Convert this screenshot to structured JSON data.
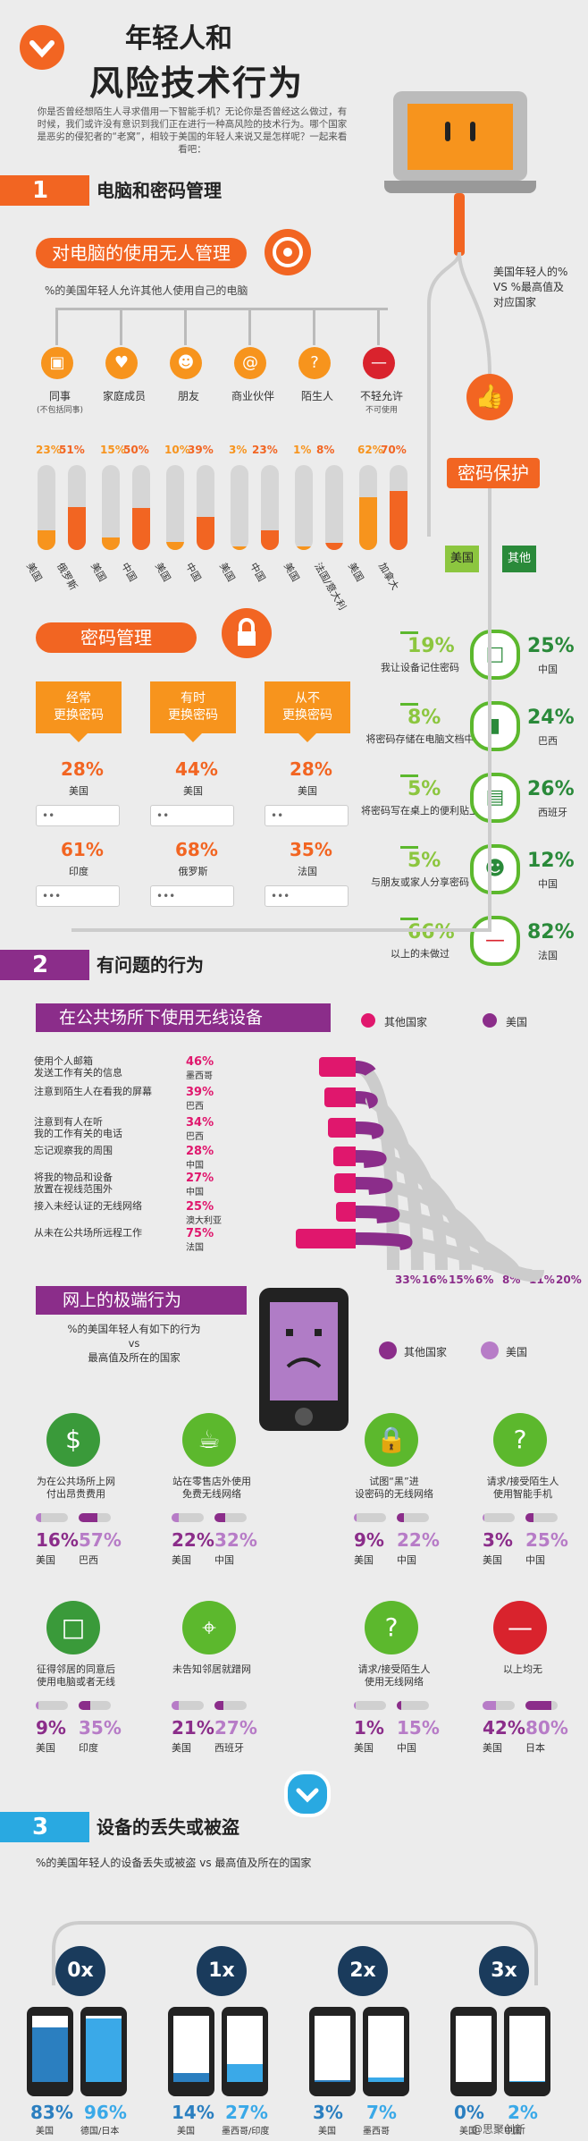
{
  "header": {
    "title_line1": "年轻人和",
    "title_line2": "风险技术行为",
    "intro": "你是否曾经想陌生人寻求借用一下智能手机？无论你是否曾经这么做过，有时候，我们或许没有意识到我们正在进行一种高风险的技术行为。哪个国家是恶劣的侵犯者的“老窝”，相较于美国的年轻人来说又是怎样呢？一起来看看吧："
  },
  "sec1": {
    "num": "1",
    "title": "电脑和密码管理"
  },
  "unattended": {
    "title": "对电脑的使用无人管理",
    "subtitle": "%的美国年轻人允许其他人使用自己的电脑",
    "side_note": "美国年轻人的% VS %最高值及对应国家",
    "categories": [
      {
        "label": "同事",
        "sub": "(不包括同事)",
        "v1": "23%",
        "v2": "51%",
        "c1": "美国",
        "c2": "俄罗斯",
        "f1": 0.23,
        "f2": 0.51
      },
      {
        "label": "家庭成员",
        "sub": "",
        "v1": "15%",
        "v2": "50%",
        "c1": "美国",
        "c2": "中国",
        "f1": 0.15,
        "f2": 0.5
      },
      {
        "label": "朋友",
        "sub": "",
        "v1": "10%",
        "v2": "39%",
        "c1": "美国",
        "c2": "中国",
        "f1": 0.1,
        "f2": 0.39
      },
      {
        "label": "商业伙伴",
        "sub": "",
        "v1": "3%",
        "v2": "23%",
        "c1": "美国",
        "c2": "中国",
        "f1": 0.03,
        "f2": 0.23
      },
      {
        "label": "陌生人",
        "sub": "",
        "v1": "1%",
        "v2": "8%",
        "c1": "美国",
        "c2": "法国/意大利",
        "f1": 0.01,
        "f2": 0.08
      },
      {
        "label": "不轻允许",
        "sub": "不可使用",
        "v1": "62%",
        "v2": "70%",
        "c1": "美国",
        "c2": "加拿大",
        "f1": 0.62,
        "f2": 0.7
      }
    ]
  },
  "pwd_protect": {
    "title": "密码保护",
    "legend_us": "美国",
    "legend_other": "其他",
    "rows": [
      {
        "label": "我让设备记住密码",
        "us": "19%",
        "other": "25%",
        "country": "中国",
        "icon": "laptop-icon"
      },
      {
        "label": "将密码存储在电脑文档中",
        "us": "8%",
        "other": "24%",
        "country": "巴西",
        "icon": "folder-icon"
      },
      {
        "label": "将密码写在桌上的便利贴上",
        "us": "5%",
        "other": "26%",
        "country": "西班牙",
        "icon": "sticky-note-icon"
      },
      {
        "label": "与朋友或家人分享密码",
        "us": "5%",
        "other": "12%",
        "country": "中国",
        "icon": "people-icon"
      },
      {
        "label": "以上的未做过",
        "us": "66%",
        "other": "82%",
        "country": "法国",
        "icon": "no-entry-icon"
      }
    ]
  },
  "pwd_mgmt": {
    "title": "密码管理",
    "cols": [
      {
        "label": "经常\n更换密码",
        "v1": "28%",
        "c1": "美国",
        "v2": "61%",
        "c2": "印度"
      },
      {
        "label": "有时\n更换密码",
        "v1": "44%",
        "c1": "美国",
        "v2": "68%",
        "c2": "俄罗斯"
      },
      {
        "label": "从不\n更换密码",
        "v1": "28%",
        "c1": "美国",
        "v2": "35%",
        "c2": "法国"
      }
    ]
  },
  "sec2": {
    "num": "2",
    "title": "有问题的行为"
  },
  "public_wifi": {
    "title": "在公共场所下使用无线设备",
    "legend_other": "其他国家",
    "legend_us": "美国",
    "rows": [
      {
        "label": "使用个人邮箱\n发送工作有关的信息",
        "v": "46%",
        "c": "墨西哥",
        "f": 0.46
      },
      {
        "label": "注意到陌生人在看我的屏幕",
        "v": "39%",
        "c": "巴西",
        "f": 0.39
      },
      {
        "label": "注意到有人在听\n我的工作有关的电话",
        "v": "34%",
        "c": "巴西",
        "f": 0.34
      },
      {
        "label": "忘记观察我的周围",
        "v": "28%",
        "c": "中国",
        "f": 0.28
      },
      {
        "label": "将我的物品和设备\n放置在视线范围外",
        "v": "27%",
        "c": "中国",
        "f": 0.27
      },
      {
        "label": "接入未经认证的无线网络",
        "v": "25%",
        "c": "澳大利亚",
        "f": 0.25
      },
      {
        "label": "从未在公共场所远程工作",
        "v": "75%",
        "c": "法国",
        "f": 0.75
      }
    ],
    "us_values": [
      "33%",
      "16%",
      "15%",
      "6%",
      "8%",
      "11%",
      "20%"
    ]
  },
  "extreme": {
    "title": "网上的极端行为",
    "subtitle": "%的美国年轻人有如下的行为\nvs\n最高值及所在的国家",
    "legend_other": "其他国家",
    "legend_us": "美国",
    "items": [
      {
        "label": "为在公共场所上网\n付出昂贵费用",
        "us": "16%",
        "other": "57%",
        "country": "巴西",
        "icon": "money-icon",
        "fu": 0.16,
        "fo": 0.57
      },
      {
        "label": "站在零售店外使用\n免费无线网络",
        "us": "22%",
        "other": "32%",
        "country": "中国",
        "icon": "coffee-wifi-icon",
        "fu": 0.22,
        "fo": 0.32
      },
      {
        "label": "试图“黑”进\n设密码的无线网络",
        "us": "9%",
        "other": "22%",
        "country": "中国",
        "icon": "lock-icon",
        "fu": 0.09,
        "fo": 0.22
      },
      {
        "label": "请求/接受陌生人\n使用智能手机",
        "us": "3%",
        "other": "25%",
        "country": "中国",
        "icon": "phone-question-icon",
        "fu": 0.03,
        "fo": 0.25
      },
      {
        "label": "征得邻居的同意后\n使用电脑或者无线",
        "us": "9%",
        "other": "35%",
        "country": "印度",
        "icon": "laptop-icon",
        "fu": 0.09,
        "fo": 0.35
      },
      {
        "label": "未告知邻居就蹭网",
        "us": "21%",
        "other": "27%",
        "country": "西班牙",
        "icon": "router-icon",
        "fu": 0.21,
        "fo": 0.27
      },
      {
        "label": "请求/接受陌生人\n使用无线网络",
        "us": "1%",
        "other": "15%",
        "country": "中国",
        "icon": "wifi-question-icon",
        "fu": 0.01,
        "fo": 0.15
      },
      {
        "label": "以上均无",
        "us": "42%",
        "other": "80%",
        "country": "日本",
        "icon": "no-entry-icon",
        "fu": 0.42,
        "fo": 0.8
      }
    ]
  },
  "sec3": {
    "num": "3",
    "title": "设备的丢失或被盗",
    "subtitle": "%的美国年轻人的设备丢失或被盗 vs 最高值及所在的国家",
    "groups": [
      {
        "label": "0x",
        "us": "83%",
        "other": "96%",
        "c1": "美国",
        "c2": "德国/日本",
        "fu": 0.83,
        "fo": 0.96
      },
      {
        "label": "1x",
        "us": "14%",
        "other": "27%",
        "c1": "美国",
        "c2": "墨西哥/印度",
        "fu": 0.14,
        "fo": 0.27
      },
      {
        "label": "2x",
        "us": "3%",
        "other": "7%",
        "c1": "美国",
        "c2": "墨西哥",
        "fu": 0.03,
        "fo": 0.07
      },
      {
        "label": "3x",
        "us": "0%",
        "other": "2%",
        "c1": "美国",
        "c2": "中国",
        "fu": 0.0,
        "fo": 0.02
      }
    ]
  },
  "watermark": "@思聚创新",
  "chart_data": [
    {
      "type": "bar",
      "title": "对电脑的使用无人管理",
      "categories": [
        "同事",
        "家庭成员",
        "朋友",
        "商业伙伴",
        "陌生人",
        "不轻允许不可使用"
      ],
      "series": [
        {
          "name": "美国",
          "values": [
            23,
            15,
            10,
            3,
            1,
            62
          ]
        },
        {
          "values": [
            51,
            50,
            39,
            23,
            8,
            70
          ]
        }
      ]
    },
    {
      "type": "table",
      "title": "密码保护",
      "series": [
        {
          "name": "美国",
          "values": [
            19,
            8,
            5,
            5,
            66
          ]
        },
        {
          "name": "其他",
          "values": [
            25,
            24,
            26,
            12,
            82
          ]
        }
      ]
    },
    {
      "type": "bar",
      "title": "在公共场所下使用无线设备",
      "series": [
        {
          "name": "其他国家",
          "values": [
            46,
            39,
            34,
            28,
            27,
            25,
            75
          ]
        },
        {
          "name": "美国",
          "values": [
            33,
            16,
            15,
            6,
            8,
            11,
            20
          ]
        }
      ]
    },
    {
      "type": "bar",
      "title": "网上的极端行为",
      "series": [
        {
          "name": "美国",
          "values": [
            16,
            22,
            9,
            3,
            9,
            21,
            1,
            42
          ]
        },
        {
          "name": "其他国家",
          "values": [
            57,
            32,
            22,
            25,
            35,
            27,
            15,
            80
          ]
        }
      ]
    },
    {
      "type": "bar",
      "title": "设备的丢失或被盗",
      "categories": [
        "0x",
        "1x",
        "2x",
        "3x"
      ],
      "series": [
        {
          "name": "美国",
          "values": [
            83,
            14,
            3,
            0
          ]
        },
        {
          "values": [
            96,
            27,
            7,
            2
          ]
        }
      ]
    }
  ]
}
